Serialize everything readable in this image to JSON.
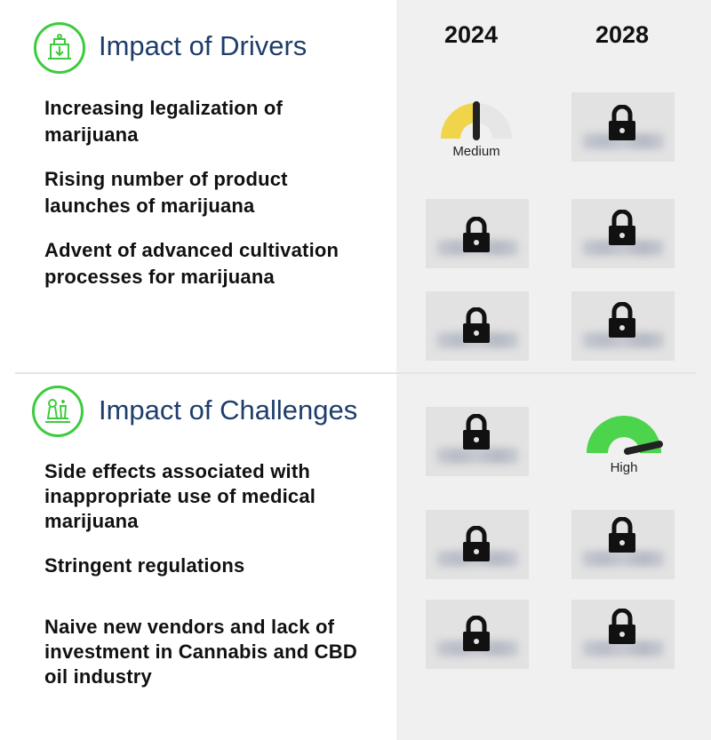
{
  "years": [
    "2024",
    "2028"
  ],
  "drivers": {
    "title": "Impact of Drivers",
    "icon": "growth-drivers-icon",
    "items": [
      "Increasing legalization of\nmarijuana",
      "Rising number of product\nlaunches of marijuana",
      "Advent of advanced cultivation\nprocesses for marijuana"
    ],
    "gauge_2024": {
      "label": "Medium",
      "level": "medium",
      "color": "#f0d44a"
    }
  },
  "challenges": {
    "title": "Impact of Challenges",
    "icon": "chess-strategy-icon",
    "items": [
      "Side effects associated with\ninappropriate use of medical\nmarijuana",
      "Stringent regulations",
      "Naive new vendors and lack of\ninvestment in Cannabis and CBD\noil industry"
    ],
    "gauge_2028": {
      "label": "High",
      "level": "high",
      "color": "#4cd44c"
    }
  },
  "colors": {
    "accent": "#3dcc3d",
    "title": "#1f3d6b",
    "panel": "#f0f0f0"
  }
}
